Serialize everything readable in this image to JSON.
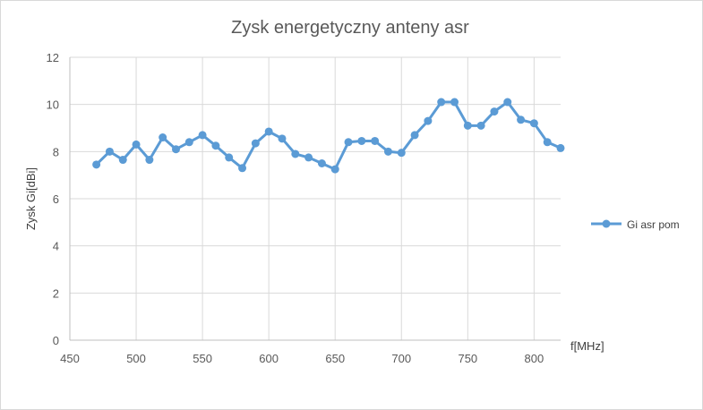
{
  "chart_data": {
    "type": "line",
    "title": "Zysk energetyczny anteny asr",
    "xlabel": "f[MHz]",
    "ylabel": "Zysk Gi[dBi]",
    "xlim": [
      450,
      820
    ],
    "ylim": [
      0,
      12
    ],
    "xticks": [
      450,
      500,
      550,
      600,
      650,
      700,
      750,
      800
    ],
    "yticks": [
      0,
      2,
      4,
      6,
      8,
      10,
      12
    ],
    "grid": true,
    "legend_position": "right",
    "series": [
      {
        "name": "Gi asr pom",
        "color": "#5b9bd5",
        "x": [
          470,
          480,
          490,
          500,
          510,
          520,
          530,
          540,
          550,
          560,
          570,
          580,
          590,
          600,
          610,
          620,
          630,
          640,
          650,
          660,
          670,
          680,
          690,
          700,
          710,
          720,
          730,
          740,
          750,
          760,
          770,
          780,
          790,
          800,
          810,
          820
        ],
        "y": [
          7.45,
          8.0,
          7.65,
          8.3,
          7.65,
          8.6,
          8.1,
          8.4,
          8.7,
          8.25,
          7.75,
          7.3,
          8.35,
          8.85,
          8.55,
          7.9,
          7.75,
          7.5,
          7.25,
          8.4,
          8.45,
          8.45,
          8.0,
          7.95,
          8.7,
          9.3,
          10.1,
          10.1,
          9.1,
          9.1,
          9.7,
          10.1,
          9.35,
          9.2,
          8.4,
          8.15
        ]
      }
    ]
  }
}
